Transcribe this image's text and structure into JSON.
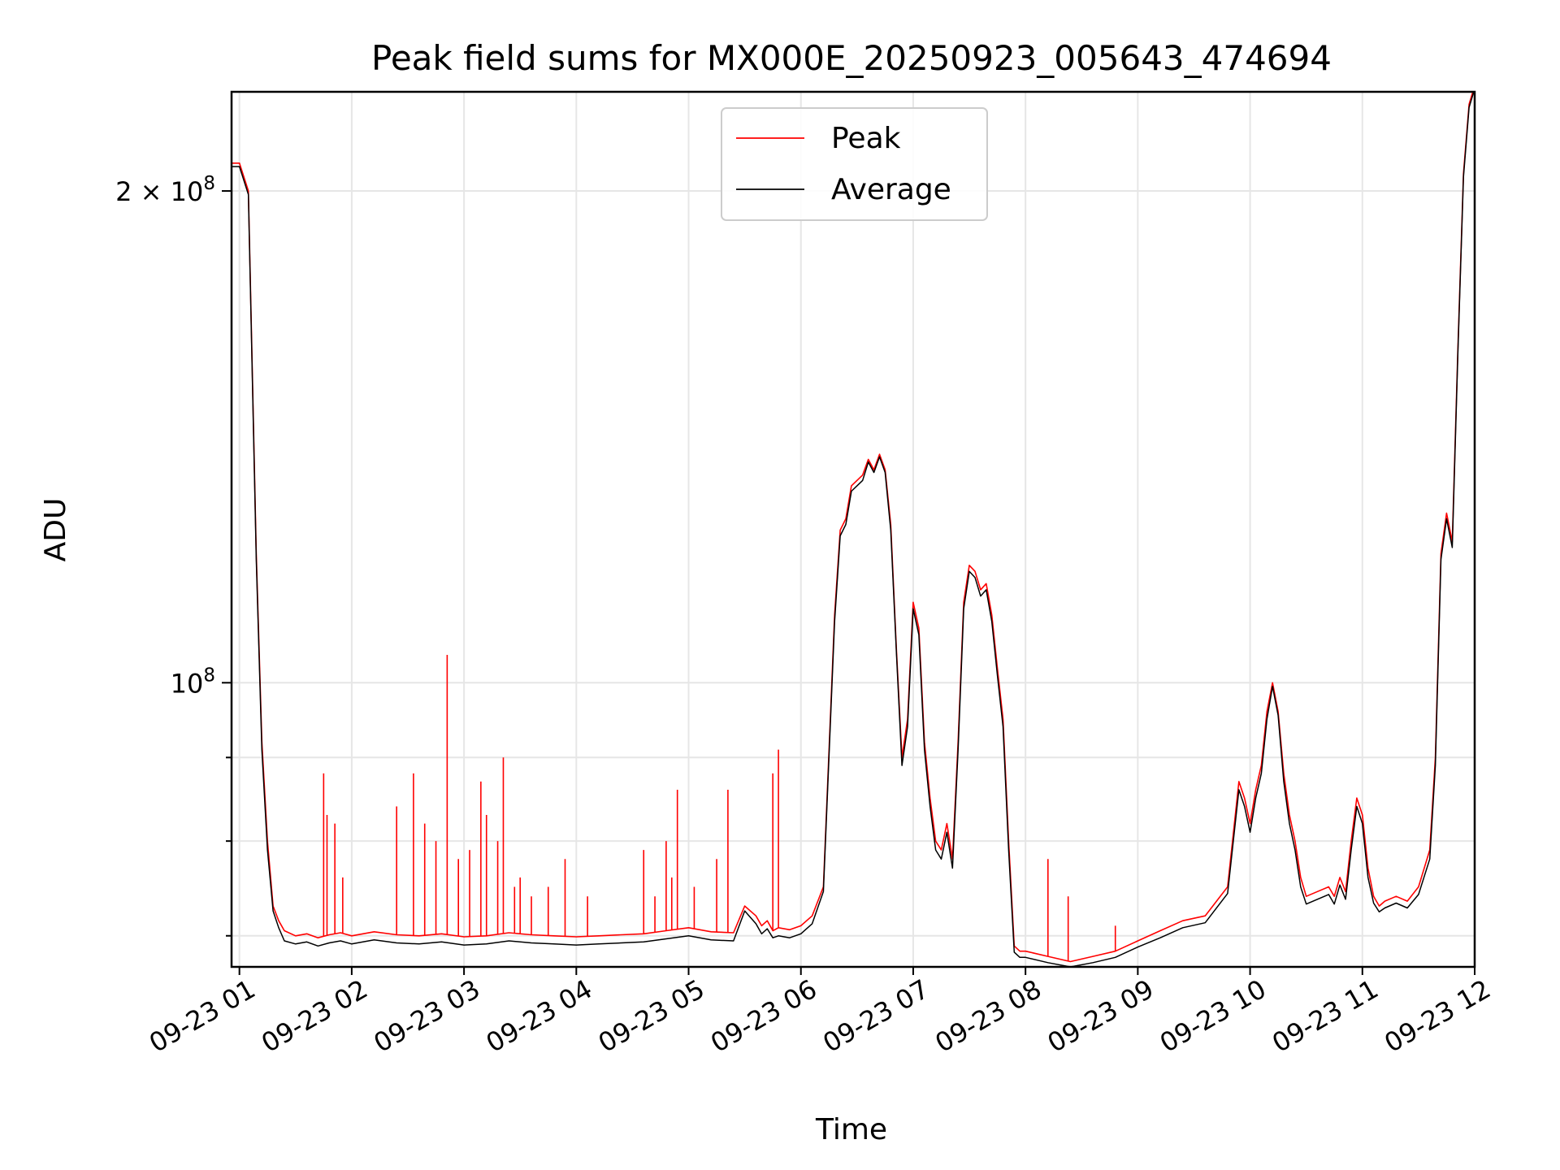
{
  "chart_data": {
    "type": "line",
    "title": "Peak field sums for MX000E_20250923_005643_474694",
    "xlabel": "Time",
    "ylabel": "ADU",
    "yscale": "log",
    "ylim": [
      67000000,
      230000000
    ],
    "xlim": [
      0.93,
      12.0
    ],
    "grid": true,
    "legend_position": "top-center",
    "x_ticks": [
      {
        "value": 1,
        "label": "09-23 01"
      },
      {
        "value": 2,
        "label": "09-23 02"
      },
      {
        "value": 3,
        "label": "09-23 03"
      },
      {
        "value": 4,
        "label": "09-23 04"
      },
      {
        "value": 5,
        "label": "09-23 05"
      },
      {
        "value": 6,
        "label": "09-23 06"
      },
      {
        "value": 7,
        "label": "09-23 07"
      },
      {
        "value": 8,
        "label": "09-23 08"
      },
      {
        "value": 9,
        "label": "09-23 09"
      },
      {
        "value": 10,
        "label": "09-23 10"
      },
      {
        "value": 11,
        "label": "09-23 11"
      },
      {
        "value": 12,
        "label": "09-23 12"
      }
    ],
    "y_major_ticks": [
      {
        "value": 100000000,
        "base": "10",
        "exp": "8",
        "mantissa": ""
      },
      {
        "value": 200000000,
        "base": "10",
        "exp": "8",
        "mantissa": "2 × "
      }
    ],
    "y_minor_ticks": [
      70000000,
      80000000,
      90000000
    ],
    "series": [
      {
        "name": "Peak",
        "color": "#ff0000",
        "x": [
          0.93,
          1.0,
          1.08,
          1.15,
          1.2,
          1.25,
          1.3,
          1.35,
          1.4,
          1.5,
          1.6,
          1.7,
          1.8,
          1.9,
          2.0,
          2.2,
          2.4,
          2.6,
          2.8,
          3.0,
          3.2,
          3.4,
          3.6,
          3.8,
          4.0,
          4.2,
          4.4,
          4.6,
          4.8,
          5.0,
          5.2,
          5.4,
          5.5,
          5.6,
          5.65,
          5.7,
          5.75,
          5.8,
          5.9,
          6.0,
          6.1,
          6.2,
          6.3,
          6.35,
          6.4,
          6.45,
          6.5,
          6.55,
          6.6,
          6.65,
          6.7,
          6.75,
          6.8,
          6.85,
          6.9,
          6.95,
          7.0,
          7.05,
          7.1,
          7.15,
          7.2,
          7.25,
          7.3,
          7.35,
          7.4,
          7.45,
          7.5,
          7.55,
          7.6,
          7.65,
          7.7,
          7.75,
          7.8,
          7.85,
          7.9,
          7.95,
          8.0,
          8.2,
          8.4,
          8.6,
          8.8,
          9.0,
          9.2,
          9.4,
          9.6,
          9.8,
          9.9,
          9.95,
          10.0,
          10.05,
          10.1,
          10.15,
          10.2,
          10.25,
          10.3,
          10.35,
          10.4,
          10.45,
          10.5,
          10.6,
          10.7,
          10.75,
          10.8,
          10.85,
          10.9,
          10.95,
          11.0,
          11.05,
          11.1,
          11.15,
          11.2,
          11.3,
          11.4,
          11.5,
          11.6,
          11.65,
          11.7,
          11.75,
          11.8,
          11.85,
          11.9,
          11.95,
          12.0
        ],
        "y": [
          208000000,
          208000000,
          200000000,
          120000000,
          92000000,
          80000000,
          73000000,
          71500000,
          70500000,
          70000000,
          70200000,
          69800000,
          70100000,
          70300000,
          70000000,
          70400000,
          70100000,
          70000000,
          70200000,
          69900000,
          70000000,
          70300000,
          70100000,
          70000000,
          69900000,
          70000000,
          70100000,
          70200000,
          70500000,
          70800000,
          70400000,
          70300000,
          73000000,
          72000000,
          71000000,
          71500000,
          70500000,
          70800000,
          70600000,
          71000000,
          72000000,
          75000000,
          110000000,
          124000000,
          126000000,
          132000000,
          133000000,
          134000000,
          137000000,
          135000000,
          138000000,
          135000000,
          125000000,
          105000000,
          90000000,
          95000000,
          112000000,
          108000000,
          92000000,
          85000000,
          80000000,
          79000000,
          82000000,
          78000000,
          92000000,
          112000000,
          118000000,
          117000000,
          114000000,
          115000000,
          110000000,
          102000000,
          95000000,
          80000000,
          69000000,
          68500000,
          68500000,
          68000000,
          67500000,
          68000000,
          68500000,
          69500000,
          70500000,
          71500000,
          72000000,
          75000000,
          87000000,
          85000000,
          82000000,
          86000000,
          89000000,
          96000000,
          100000000,
          96000000,
          88000000,
          83000000,
          80000000,
          76000000,
          74000000,
          74500000,
          75000000,
          74000000,
          76000000,
          74500000,
          80000000,
          85000000,
          83000000,
          77000000,
          74000000,
          73000000,
          73500000,
          74000000,
          73500000,
          75000000,
          79000000,
          90000000,
          120000000,
          127000000,
          122000000,
          160000000,
          205000000,
          226000000,
          232000000
        ]
      },
      {
        "name": "Average",
        "color": "#000000",
        "x": [
          0.93,
          1.0,
          1.08,
          1.15,
          1.2,
          1.25,
          1.3,
          1.35,
          1.4,
          1.5,
          1.6,
          1.7,
          1.8,
          1.9,
          2.0,
          2.2,
          2.4,
          2.6,
          2.8,
          3.0,
          3.2,
          3.4,
          3.6,
          3.8,
          4.0,
          4.2,
          4.4,
          4.6,
          4.8,
          5.0,
          5.2,
          5.4,
          5.5,
          5.6,
          5.65,
          5.7,
          5.75,
          5.8,
          5.9,
          6.0,
          6.1,
          6.2,
          6.3,
          6.35,
          6.4,
          6.45,
          6.5,
          6.55,
          6.6,
          6.65,
          6.7,
          6.75,
          6.8,
          6.85,
          6.9,
          6.95,
          7.0,
          7.05,
          7.1,
          7.15,
          7.2,
          7.25,
          7.3,
          7.35,
          7.4,
          7.45,
          7.5,
          7.55,
          7.6,
          7.65,
          7.7,
          7.75,
          7.8,
          7.85,
          7.9,
          7.95,
          8.0,
          8.2,
          8.4,
          8.6,
          8.8,
          9.0,
          9.2,
          9.4,
          9.6,
          9.8,
          9.9,
          9.95,
          10.0,
          10.05,
          10.1,
          10.15,
          10.2,
          10.25,
          10.3,
          10.35,
          10.4,
          10.45,
          10.5,
          10.6,
          10.7,
          10.75,
          10.8,
          10.85,
          10.9,
          10.95,
          11.0,
          11.05,
          11.1,
          11.15,
          11.2,
          11.3,
          11.4,
          11.5,
          11.6,
          11.65,
          11.7,
          11.75,
          11.8,
          11.85,
          11.9,
          11.95,
          12.0
        ],
        "y": [
          207000000,
          207000000,
          199000000,
          119000000,
          91000000,
          79000000,
          72500000,
          70800000,
          69500000,
          69200000,
          69400000,
          69000000,
          69300000,
          69500000,
          69200000,
          69600000,
          69300000,
          69200000,
          69400000,
          69100000,
          69200000,
          69500000,
          69300000,
          69200000,
          69100000,
          69200000,
          69300000,
          69400000,
          69700000,
          70000000,
          69600000,
          69500000,
          72500000,
          71200000,
          70200000,
          70700000,
          69800000,
          70000000,
          69800000,
          70200000,
          71200000,
          74500000,
          109000000,
          123000000,
          125000000,
          131000000,
          132000000,
          133000000,
          136500000,
          134500000,
          137500000,
          134500000,
          124000000,
          104500000,
          89000000,
          94000000,
          111000000,
          107000000,
          91000000,
          84000000,
          79000000,
          78000000,
          81000000,
          77000000,
          91000000,
          111000000,
          117000000,
          116000000,
          113000000,
          114000000,
          109000000,
          101000000,
          94000000,
          79000000,
          68400000,
          67900000,
          67900000,
          67400000,
          67000000,
          67400000,
          67900000,
          68900000,
          69800000,
          70800000,
          71300000,
          74300000,
          86000000,
          84000000,
          81000000,
          85000000,
          88000000,
          95000000,
          99500000,
          95500000,
          87000000,
          82000000,
          79000000,
          75000000,
          73200000,
          73700000,
          74200000,
          73200000,
          75200000,
          73700000,
          79000000,
          84000000,
          82000000,
          76000000,
          73300000,
          72400000,
          72800000,
          73300000,
          72800000,
          74200000,
          78000000,
          89000000,
          119000000,
          126000000,
          121000000,
          159000000,
          204000000,
          225000000,
          231000000
        ]
      }
    ],
    "spikes": {
      "series": "Peak",
      "x": [
        1.75,
        1.78,
        1.85,
        1.92,
        2.4,
        2.55,
        2.65,
        2.75,
        2.85,
        2.95,
        3.05,
        3.15,
        3.2,
        3.3,
        3.35,
        3.45,
        3.5,
        3.6,
        3.75,
        3.9,
        4.1,
        4.6,
        4.7,
        4.8,
        4.85,
        4.9,
        5.05,
        5.25,
        5.35,
        5.75,
        5.8,
        8.2,
        8.38,
        8.8
      ],
      "y": [
        88000000,
        83000000,
        82000000,
        76000000,
        84000000,
        88000000,
        82000000,
        80000000,
        104000000,
        78000000,
        79000000,
        87000000,
        83000000,
        80000000,
        90000000,
        75000000,
        76000000,
        74000000,
        75000000,
        78000000,
        74000000,
        79000000,
        74000000,
        80000000,
        76000000,
        86000000,
        75000000,
        78000000,
        86000000,
        88000000,
        91000000,
        78000000,
        74000000,
        71000000
      ]
    },
    "legend": [
      {
        "label": "Peak",
        "color": "#ff0000"
      },
      {
        "label": "Average",
        "color": "#000000"
      }
    ]
  }
}
